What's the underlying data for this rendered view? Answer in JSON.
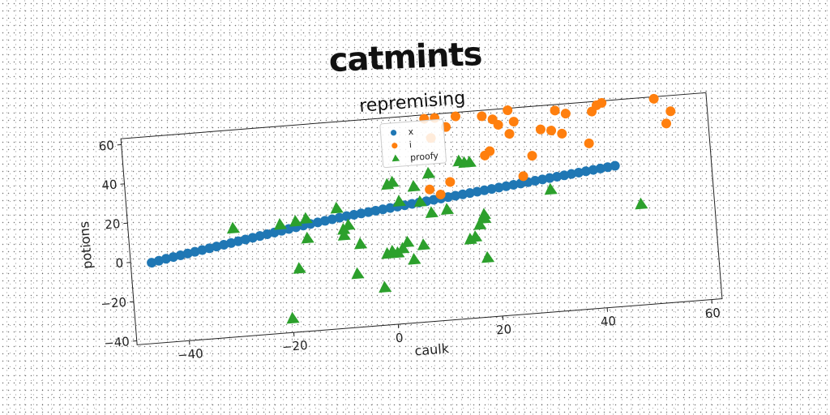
{
  "page": {
    "title": "catmints"
  },
  "chart_data": {
    "type": "scatter",
    "title": "repremising",
    "xlabel": "caulk",
    "ylabel": "potions",
    "xlim": [
      -50,
      62
    ],
    "ylim": [
      -42,
      63
    ],
    "xticks": [
      -40,
      -20,
      0,
      20,
      40,
      60
    ],
    "yticks": [
      -40,
      -20,
      0,
      20,
      40,
      60
    ],
    "grid": false,
    "legend_position": "top-center",
    "colors": {
      "x": "#1f77b4",
      "i": "#ff7f0e",
      "proofy": "#2ca02c"
    },
    "series": [
      {
        "name": "x",
        "marker": "circle",
        "points": [
          [
            -46,
            -1
          ],
          [
            -44.6,
            -0.3
          ],
          [
            -43.2,
            0.4
          ],
          [
            -41.8,
            1
          ],
          [
            -40.4,
            1.6
          ],
          [
            -39,
            2.2
          ],
          [
            -37.6,
            2.8
          ],
          [
            -36.2,
            3.4
          ],
          [
            -34.8,
            4
          ],
          [
            -33.4,
            4.6
          ],
          [
            -32,
            5.2
          ],
          [
            -30.6,
            5.8
          ],
          [
            -29.2,
            6.4
          ],
          [
            -27.8,
            7
          ],
          [
            -26.4,
            7.6
          ],
          [
            -25,
            8.2
          ],
          [
            -23.6,
            8.8
          ],
          [
            -22.2,
            9.4
          ],
          [
            -20.8,
            10
          ],
          [
            -19.4,
            10.6
          ],
          [
            -18,
            11.2
          ],
          [
            -16.6,
            11.8
          ],
          [
            -15.2,
            12.3
          ],
          [
            -13.8,
            12.8
          ],
          [
            -12.4,
            13.3
          ],
          [
            -11,
            13.8
          ],
          [
            -9.6,
            14.3
          ],
          [
            -8.2,
            14.8
          ],
          [
            -6.8,
            15.2
          ],
          [
            -5.4,
            15.6
          ],
          [
            -4,
            16
          ],
          [
            -2.6,
            16.4
          ],
          [
            -1.2,
            16.8
          ],
          [
            0.2,
            17.2
          ],
          [
            1.6,
            17.6
          ],
          [
            3,
            18
          ],
          [
            4.4,
            18.4
          ],
          [
            5.8,
            18.8
          ],
          [
            7.2,
            19.2
          ],
          [
            8.6,
            19.6
          ],
          [
            10,
            20
          ],
          [
            11.4,
            20.4
          ],
          [
            12.8,
            20.8
          ],
          [
            14.2,
            21.2
          ],
          [
            15.6,
            21.6
          ],
          [
            17,
            22
          ],
          [
            18.4,
            22.4
          ],
          [
            19.8,
            22.8
          ],
          [
            21.2,
            23.2
          ],
          [
            22.6,
            23.6
          ],
          [
            24,
            24
          ],
          [
            25.4,
            24.4
          ],
          [
            26.8,
            24.8
          ],
          [
            28.2,
            25.2
          ],
          [
            29.6,
            25.6
          ],
          [
            31,
            26
          ],
          [
            32.4,
            26.4
          ],
          [
            33.8,
            26.8
          ],
          [
            35.2,
            27.2
          ],
          [
            36.6,
            27.6
          ],
          [
            38,
            28
          ],
          [
            39.4,
            28.4
          ],
          [
            40.8,
            28.8
          ],
          [
            42.2,
            29.2
          ],
          [
            43.6,
            29.6
          ]
        ]
      },
      {
        "name": "i",
        "marker": "circle",
        "points": [
          [
            8,
            61
          ],
          [
            10,
            61
          ],
          [
            14,
            61
          ],
          [
            19,
            60
          ],
          [
            21,
            58
          ],
          [
            24,
            62
          ],
          [
            9,
            51
          ],
          [
            12,
            56
          ],
          [
            20,
            42
          ],
          [
            22,
            55
          ],
          [
            24,
            50
          ],
          [
            25,
            56
          ],
          [
            19,
            40
          ],
          [
            28,
            38
          ],
          [
            30,
            51
          ],
          [
            32,
            50
          ],
          [
            33,
            60
          ],
          [
            34,
            48
          ],
          [
            35,
            58
          ],
          [
            39,
            42
          ],
          [
            40,
            58
          ],
          [
            41,
            61
          ],
          [
            42,
            62
          ],
          [
            52,
            62
          ],
          [
            54,
            49
          ],
          [
            55,
            55
          ],
          [
            8,
            25
          ],
          [
            10,
            22
          ],
          [
            12,
            28
          ],
          [
            26,
            28
          ]
        ]
      },
      {
        "name": "proofy",
        "marker": "triangle",
        "points": [
          [
            -30,
            13
          ],
          [
            -21,
            13
          ],
          [
            -18,
            14
          ],
          [
            -16,
            15
          ],
          [
            -10,
            19
          ],
          [
            -16,
            5
          ],
          [
            -9,
            5
          ],
          [
            -9,
            8
          ],
          [
            -8,
            10
          ],
          [
            -6,
            0
          ],
          [
            -18,
            -10
          ],
          [
            -7,
            -15
          ],
          [
            -2,
            -23
          ],
          [
            -1,
            -6
          ],
          [
            0,
            -5
          ],
          [
            1,
            -6
          ],
          [
            2,
            -4
          ],
          [
            3,
            -1
          ],
          [
            4,
            -10
          ],
          [
            6,
            -3
          ],
          [
            0,
            29
          ],
          [
            1,
            30
          ],
          [
            2,
            20
          ],
          [
            5,
            27
          ],
          [
            6,
            19
          ],
          [
            8,
            33
          ],
          [
            8,
            13
          ],
          [
            11,
            14
          ],
          [
            14,
            38
          ],
          [
            15,
            37
          ],
          [
            16,
            37
          ],
          [
            15,
            -2
          ],
          [
            16,
            -1
          ],
          [
            17,
            5
          ],
          [
            18,
            8
          ],
          [
            18,
            10
          ],
          [
            18,
            -12
          ],
          [
            -20,
            -35
          ],
          [
            31,
            20
          ],
          [
            48,
            9
          ]
        ]
      }
    ]
  }
}
